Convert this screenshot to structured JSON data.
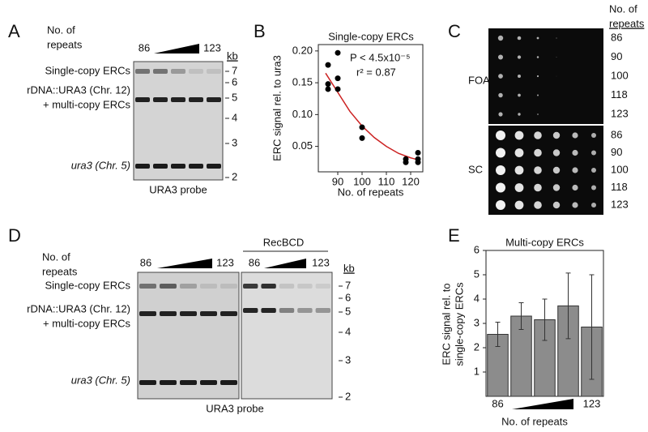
{
  "chart_data": [
    {
      "type": "scatter",
      "title": "Single-copy ERCs",
      "xlabel": "No. of repeats",
      "ylabel": "ERC signal rel. to ura3",
      "annotations": [
        "P < 4.5x10⁻⁵",
        "r² = 0.87"
      ],
      "x": [
        86,
        86,
        86,
        90,
        90,
        90,
        100,
        100,
        118,
        118,
        123,
        123,
        123
      ],
      "values": [
        0.178,
        0.148,
        0.14,
        0.197,
        0.157,
        0.14,
        0.08,
        0.063,
        0.03,
        0.025,
        0.04,
        0.03,
        0.025
      ],
      "color": "#000000",
      "fit": {
        "color": "#cc2222",
        "x": [
          85,
          90,
          95,
          100,
          105,
          110,
          115,
          120,
          123
        ],
        "values": [
          0.165,
          0.135,
          0.105,
          0.082,
          0.064,
          0.05,
          0.039,
          0.032,
          0.029
        ]
      },
      "xlim": [
        82,
        125
      ],
      "xticks": [
        90,
        100,
        110,
        120
      ],
      "ylim": [
        0.01,
        0.21
      ],
      "yticks": [
        0.05,
        {
          "value": 0.1,
          "label": "0.10"
        },
        0.15,
        {
          "value": 0.2,
          "label": "0.20"
        }
      ]
    },
    {
      "type": "bar",
      "title": "Multi-copy ERCs",
      "ylabel": [
        "ERC signal rel. to",
        "single-copy ERCs"
      ],
      "xlabel": "No. of repeats",
      "categories": [
        "86",
        null,
        null,
        null,
        "123"
      ],
      "values": [
        2.55,
        3.3,
        3.15,
        3.72,
        2.85
      ],
      "errors": [
        0.5,
        0.55,
        0.85,
        1.35,
        2.15
      ],
      "color": "#8c8c8c",
      "ylim": [
        0,
        6
      ],
      "yticks": [
        1,
        2,
        3,
        4,
        5,
        6
      ]
    }
  ],
  "panels": {
    "A": {
      "letter": "A",
      "repeats": [
        "No. of",
        "repeats"
      ],
      "lane_first": "86",
      "lane_last": "123",
      "kb": "kb",
      "markers": [
        "7",
        "6",
        "5",
        "4",
        "3",
        "2"
      ],
      "bands": [
        "Single-copy ERCs",
        "rDNA::URA3 (Chr. 12)",
        "+ multi-copy ERCs",
        "ura3 (Chr. 5)"
      ],
      "probe": "URA3 probe"
    },
    "B": {
      "letter": "B"
    },
    "C": {
      "letter": "C",
      "repeats": [
        "No. of",
        "repeats"
      ],
      "media": [
        "FOA",
        "SC"
      ],
      "rows": [
        "86",
        "90",
        "100",
        "118",
        "123"
      ]
    },
    "D": {
      "letter": "D",
      "repeats": [
        "No. of",
        "repeats"
      ],
      "lane_first": "86",
      "lane_last": "123",
      "treatment": "RecBCD",
      "kb": "kb",
      "markers": [
        "7",
        "6",
        "5",
        "4",
        "3",
        "2"
      ],
      "bands": [
        "Single-copy ERCs",
        "rDNA::URA3 (Chr. 12)",
        "+ multi-copy ERCs",
        "ura3 (Chr. 5)"
      ],
      "probe": "URA3 probe"
    },
    "E": {
      "letter": "E"
    }
  }
}
